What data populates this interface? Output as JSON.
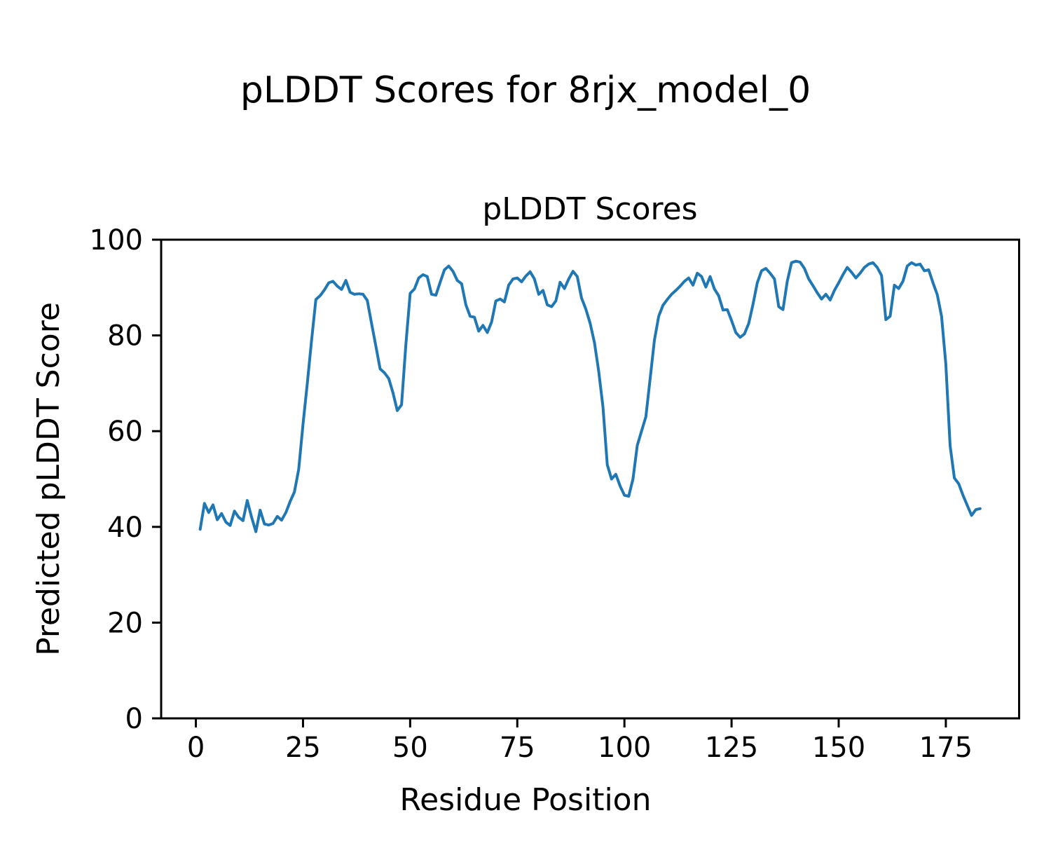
{
  "figure": {
    "suptitle": "pLDDT Scores for 8rjx_model_0"
  },
  "chart_data": {
    "type": "line",
    "title": "pLDDT Scores",
    "xlabel": "Residue Position",
    "ylabel": "Predicted pLDDT Score",
    "x_ticks": [
      0,
      25,
      50,
      75,
      100,
      125,
      150,
      175
    ],
    "y_ticks": [
      0,
      20,
      40,
      60,
      80,
      100
    ],
    "xlim": [
      -8.1,
      192.1
    ],
    "ylim": [
      0,
      100
    ],
    "grid": false,
    "legend": "none",
    "line_color": "#1f77b4",
    "background_color": "#ffffff",
    "series": [
      {
        "name": "pLDDT",
        "x_start": 1,
        "x_step": 1,
        "values": [
          39.5,
          44.9,
          43.0,
          44.6,
          41.5,
          42.8,
          41.0,
          40.3,
          43.3,
          42.0,
          41.3,
          45.5,
          42.0,
          39.0,
          43.5,
          40.6,
          40.4,
          40.7,
          42.2,
          41.4,
          43.0,
          45.3,
          47.3,
          52.0,
          61.5,
          70.0,
          79.0,
          87.5,
          88.3,
          89.5,
          91.0,
          91.3,
          90.3,
          89.6,
          91.5,
          89.0,
          88.6,
          88.7,
          88.6,
          87.3,
          82.5,
          77.8,
          73.0,
          72.2,
          71.0,
          68.0,
          64.3,
          65.5,
          78.0,
          88.8,
          89.7,
          92.0,
          92.7,
          92.3,
          88.6,
          88.4,
          91.1,
          93.7,
          94.5,
          93.4,
          91.5,
          90.8,
          86.4,
          84.0,
          83.8,
          80.9,
          82.1,
          80.6,
          82.8,
          87.2,
          87.6,
          87.0,
          90.5,
          91.8,
          92.0,
          91.2,
          92.4,
          93.3,
          91.8,
          88.6,
          89.4,
          86.4,
          86.0,
          87.2,
          91.1,
          89.8,
          91.8,
          93.4,
          92.3,
          87.8,
          85.5,
          82.5,
          78.5,
          72.5,
          65.0,
          53.0,
          50.0,
          51.0,
          48.5,
          46.6,
          46.4,
          50.0,
          57.0,
          60.0,
          63.0,
          71.0,
          79.0,
          84.0,
          86.3,
          87.5,
          88.6,
          89.4,
          90.3,
          91.3,
          92.0,
          90.5,
          93.0,
          92.3,
          90.1,
          92.3,
          89.7,
          88.3,
          85.3,
          85.4,
          83.1,
          80.6,
          79.6,
          80.3,
          82.5,
          86.5,
          91.0,
          93.5,
          94.0,
          93.0,
          91.8,
          86.0,
          85.4,
          91.3,
          95.2,
          95.5,
          95.3,
          94.0,
          91.8,
          90.4,
          88.9,
          87.6,
          88.6,
          87.4,
          89.4,
          91.0,
          92.7,
          94.2,
          93.2,
          92.0,
          93.0,
          94.2,
          94.9,
          95.2,
          94.2,
          92.5,
          83.3,
          84.0,
          90.5,
          89.8,
          91.3,
          94.5,
          95.2,
          94.7,
          94.9,
          93.5,
          93.7,
          91.0,
          88.5,
          84.0,
          74.0,
          57.0,
          50.2,
          49.0,
          46.6,
          44.5,
          42.4,
          43.6,
          43.8
        ]
      }
    ]
  }
}
